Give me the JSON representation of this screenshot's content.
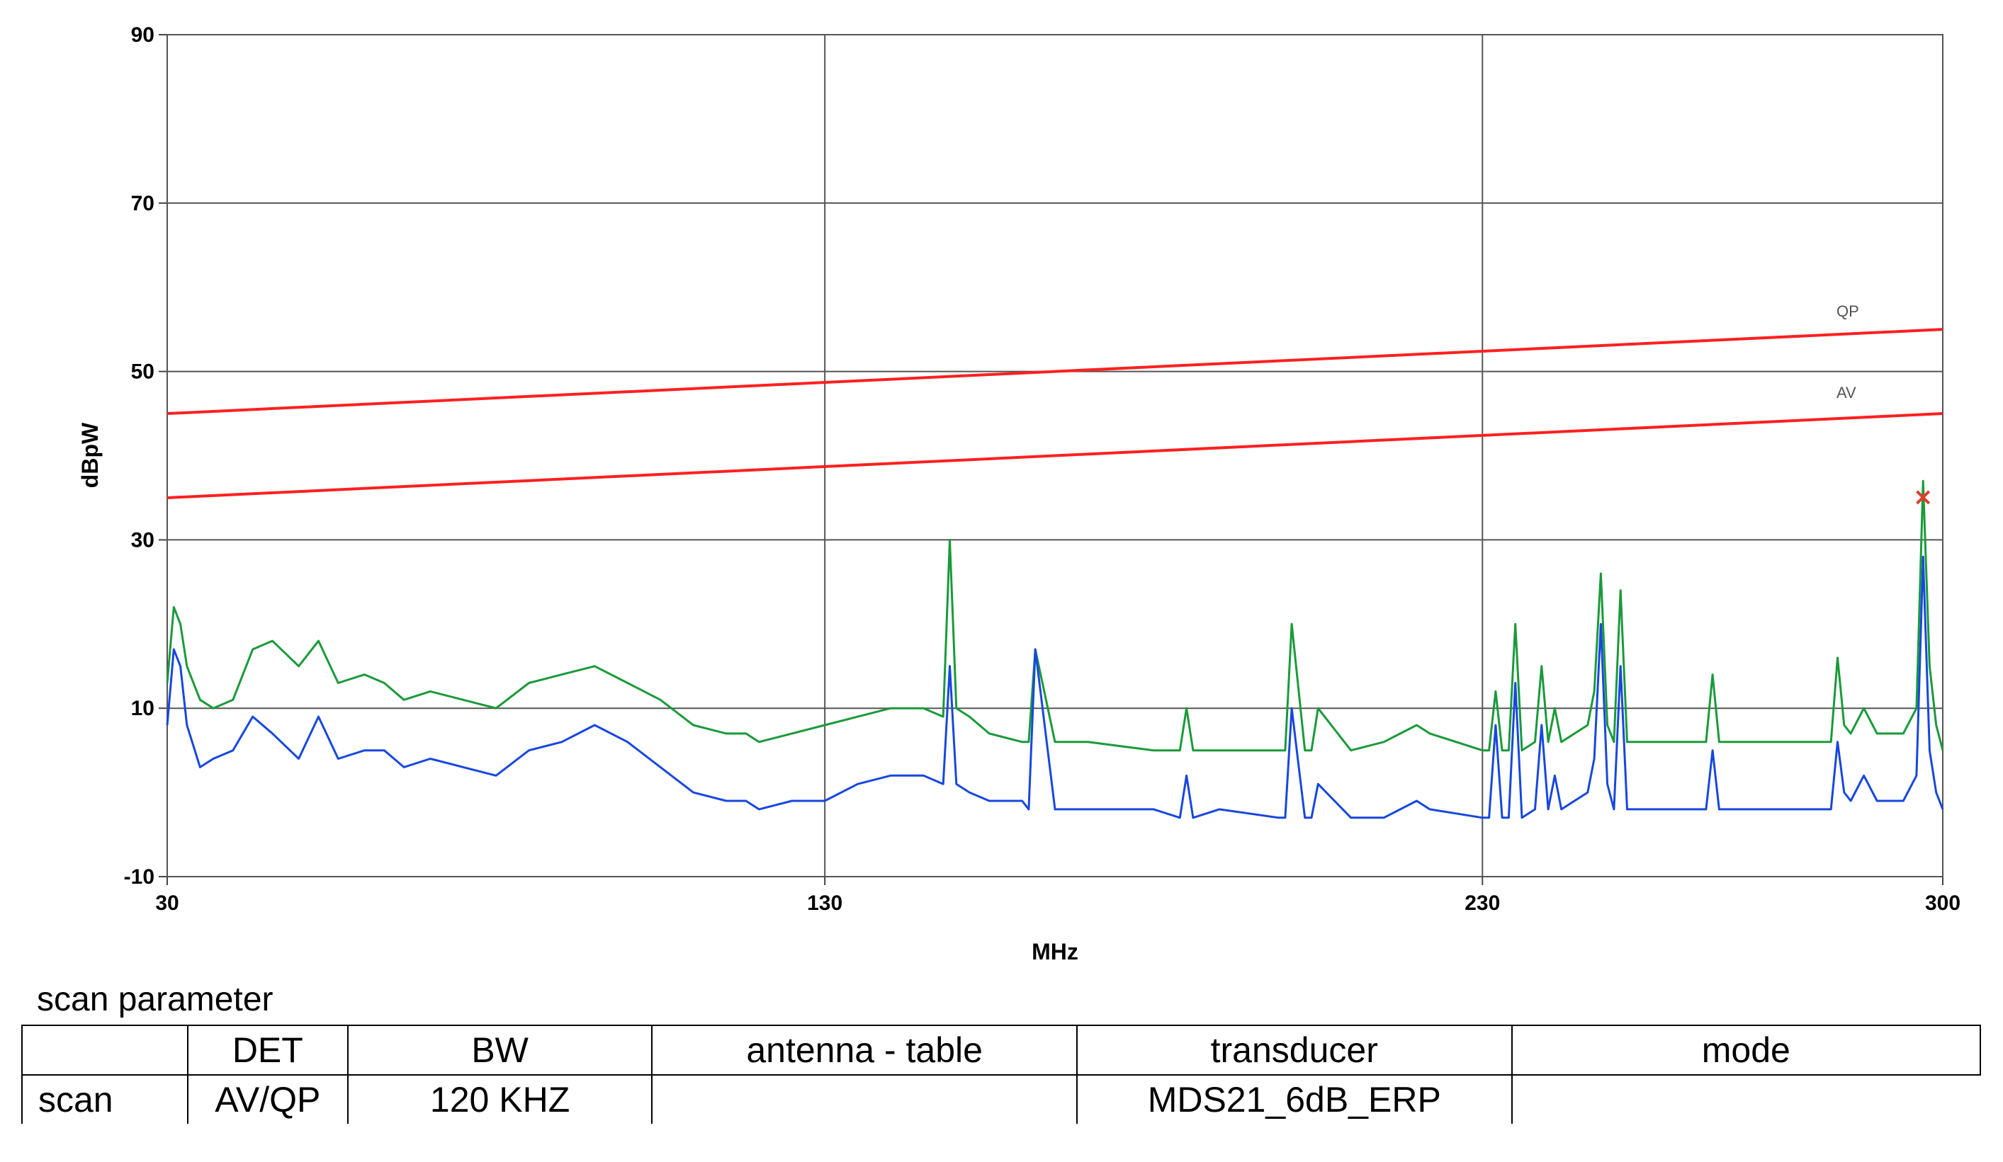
{
  "chart_data": {
    "type": "line",
    "xlabel": "MHz",
    "ylabel": "dBpW",
    "xlim": [
      30,
      300
    ],
    "ylim": [
      -10,
      90
    ],
    "x_ticks": [
      "30",
      "130",
      "230",
      "300"
    ],
    "y_ticks": [
      "90",
      "70",
      "50",
      "30",
      "10",
      "-10"
    ],
    "grid": true,
    "limit_lines": [
      {
        "name": "QP",
        "x": [
          30,
          300
        ],
        "y": [
          45,
          55
        ],
        "color": "#ff2020"
      },
      {
        "name": "AV",
        "x": [
          30,
          300
        ],
        "y": [
          35,
          45
        ],
        "color": "#ff2020"
      }
    ],
    "series": [
      {
        "color": "#1a9a3a",
        "x": [
          30,
          31,
          32,
          33,
          35,
          37,
          40,
          43,
          46,
          50,
          53,
          56,
          60,
          63,
          66,
          70,
          75,
          80,
          85,
          90,
          95,
          100,
          105,
          110,
          115,
          118,
          120,
          125,
          130,
          135,
          140,
          145,
          148,
          149,
          150,
          152,
          155,
          160,
          161,
          162,
          165,
          170,
          180,
          184,
          185,
          186,
          190,
          199,
          200,
          201,
          203,
          204,
          205,
          210,
          215,
          220,
          222,
          230,
          231,
          232,
          233,
          234,
          235,
          236,
          238,
          239,
          240,
          241,
          242,
          246,
          247,
          248,
          249,
          250,
          251,
          252,
          253,
          254,
          260,
          264,
          265,
          266,
          275,
          283,
          284,
          285,
          286,
          288,
          290,
          294,
          296,
          297,
          298,
          299,
          300
        ],
        "y": [
          13,
          22,
          20,
          15,
          11,
          10,
          11,
          17,
          18,
          15,
          18,
          13,
          14,
          13,
          11,
          12,
          11,
          10,
          13,
          14,
          15,
          13,
          11,
          8,
          7,
          7,
          6,
          7,
          8,
          9,
          10,
          10,
          9,
          30,
          10,
          9,
          7,
          6,
          6,
          17,
          6,
          6,
          5,
          5,
          10,
          5,
          5,
          5,
          5,
          20,
          5,
          5,
          10,
          5,
          6,
          8,
          7,
          5,
          5,
          12,
          5,
          5,
          20,
          5,
          6,
          15,
          6,
          10,
          6,
          8,
          12,
          26,
          8,
          6,
          24,
          6,
          6,
          6,
          6,
          6,
          14,
          6,
          6,
          6,
          16,
          8,
          7,
          10,
          7,
          7,
          10,
          37,
          15,
          8,
          5
        ]
      },
      {
        "color": "#1747e0",
        "x": [
          30,
          31,
          32,
          33,
          35,
          37,
          40,
          43,
          46,
          50,
          53,
          56,
          60,
          63,
          66,
          70,
          75,
          80,
          85,
          90,
          95,
          100,
          105,
          110,
          115,
          118,
          120,
          125,
          130,
          135,
          140,
          145,
          148,
          149,
          150,
          152,
          155,
          160,
          161,
          162,
          165,
          170,
          180,
          184,
          185,
          186,
          190,
          199,
          200,
          201,
          203,
          204,
          205,
          210,
          215,
          220,
          222,
          230,
          231,
          232,
          233,
          234,
          235,
          236,
          238,
          239,
          240,
          241,
          242,
          246,
          247,
          248,
          249,
          250,
          251,
          252,
          253,
          254,
          260,
          264,
          265,
          266,
          275,
          283,
          284,
          285,
          286,
          288,
          290,
          294,
          296,
          297,
          298,
          299,
          300
        ],
        "y": [
          8,
          17,
          15,
          8,
          3,
          4,
          5,
          9,
          7,
          4,
          9,
          4,
          5,
          5,
          3,
          4,
          3,
          2,
          5,
          6,
          8,
          6,
          3,
          0,
          -1,
          -1,
          -2,
          -1,
          -1,
          1,
          2,
          2,
          1,
          15,
          1,
          0,
          -1,
          -1,
          -2,
          17,
          -2,
          -2,
          -2,
          -3,
          2,
          -3,
          -2,
          -3,
          -3,
          10,
          -3,
          -3,
          1,
          -3,
          -3,
          -1,
          -2,
          -3,
          -3,
          8,
          -3,
          -3,
          13,
          -3,
          -2,
          8,
          -2,
          2,
          -2,
          0,
          4,
          20,
          1,
          -2,
          15,
          -2,
          -2,
          -2,
          -2,
          -2,
          5,
          -2,
          -2,
          -2,
          6,
          0,
          -1,
          2,
          -1,
          -1,
          2,
          28,
          5,
          0,
          -2
        ]
      }
    ],
    "markers": [
      {
        "x": 297,
        "y": 35,
        "symbol": "×",
        "color": "#e23b2b"
      }
    ]
  },
  "scan": {
    "title": "scan parameter",
    "headers": [
      "",
      "DET",
      "BW",
      "antenna - table",
      "transducer",
      "mode"
    ],
    "row": [
      "scan",
      "AV/QP",
      "120 KHZ",
      "",
      "MDS21_6dB_ERP",
      ""
    ]
  }
}
